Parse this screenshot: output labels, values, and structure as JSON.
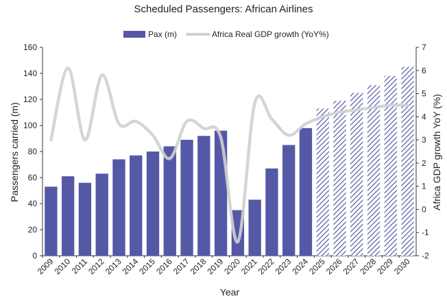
{
  "chart_data": {
    "type": "bar",
    "title": "Scheduled Passengers: African Airlines",
    "xlabel": "Year",
    "ylabel": "Passengers carried (m)",
    "y2label": "Africa GDP growth YoY (%)",
    "categories": [
      "2009",
      "2010",
      "2011",
      "2012",
      "2013",
      "2014",
      "2015",
      "2016",
      "2017",
      "2018",
      "2019",
      "2020",
      "2021",
      "2022",
      "2023",
      "2024",
      "2025",
      "2026",
      "2027",
      "2028",
      "2029",
      "2030"
    ],
    "ylim": [
      0,
      160
    ],
    "yticks": [
      0,
      20,
      40,
      60,
      80,
      100,
      120,
      140,
      160
    ],
    "y2lim": [
      -2,
      7
    ],
    "y2ticks": [
      -2,
      -1,
      0,
      1,
      2,
      3,
      4,
      5,
      6,
      7
    ],
    "grid": false,
    "legend_position": "top",
    "series": [
      {
        "name": "Pax (m)",
        "type": "bar",
        "axis": "left",
        "color": "#5458A5",
        "values": [
          53,
          61,
          56,
          63,
          74,
          77,
          80,
          84,
          89,
          92,
          96,
          35,
          43,
          67,
          85,
          98,
          113,
          119,
          125,
          131,
          138,
          145
        ],
        "forecast_from": "2025"
      },
      {
        "name": "Africa Real GDP growth (YoY%)",
        "type": "line",
        "axis": "right",
        "color": "#D0D0D0",
        "values": [
          3.0,
          6.1,
          3.0,
          5.8,
          3.7,
          3.8,
          3.2,
          2.2,
          3.8,
          3.5,
          3.1,
          -1.4,
          4.6,
          3.9,
          3.2,
          3.7,
          4.0,
          4.2,
          4.3,
          4.4,
          4.5,
          4.5
        ]
      }
    ]
  }
}
